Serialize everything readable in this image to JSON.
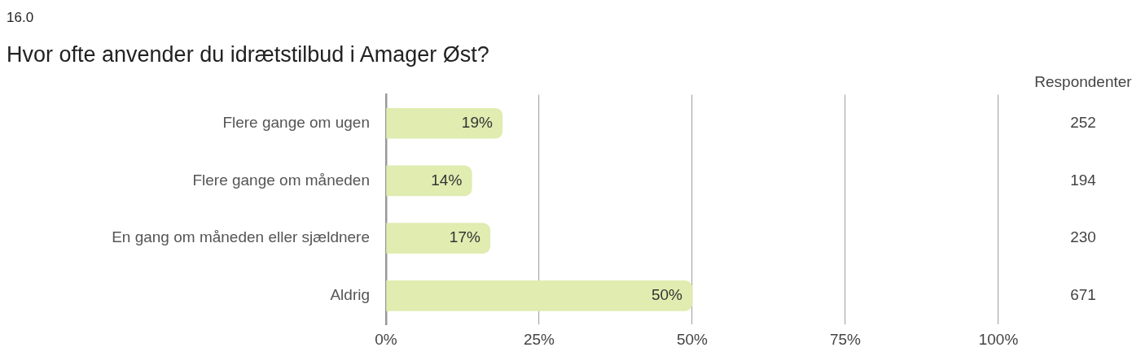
{
  "chart_data": {
    "type": "bar",
    "orientation": "horizontal",
    "title": "Hvor ofte anvender du idrætstilbud i Amager Øst?",
    "categories": [
      "Flere gange om ugen",
      "Flere gange om måneden",
      "En gang om måneden eller sjældnere",
      "Aldrig"
    ],
    "values": [
      19,
      14,
      17,
      50
    ],
    "color": "#e0ecb0",
    "value_labels": [
      "19%",
      "14%",
      "17%",
      "50%"
    ],
    "xlim": [
      0,
      100
    ],
    "xticks": [
      {
        "value": 0,
        "label": "0%"
      },
      {
        "value": 25,
        "label": "25%"
      },
      {
        "value": 50,
        "label": "50%"
      },
      {
        "value": 75,
        "label": "75%"
      },
      {
        "value": 100,
        "label": "100%"
      }
    ],
    "grid": "x",
    "legend": false,
    "annotations": [
      "16.0",
      "Respondenter",
      "252",
      "194",
      "230",
      "671"
    ]
  }
}
